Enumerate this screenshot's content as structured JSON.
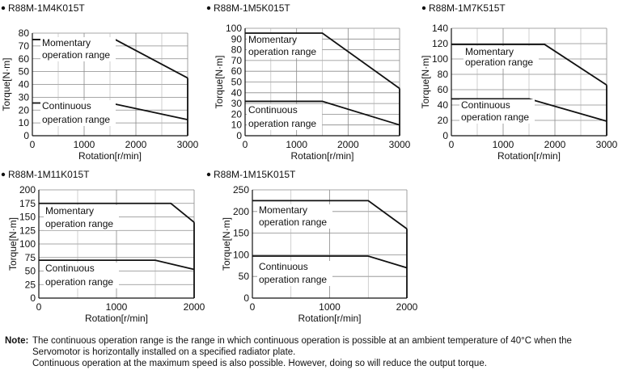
{
  "chart_data": [
    {
      "type": "line",
      "title": "R88M-1M4K015T",
      "xlabel": "Rotation[r/min]",
      "ylabel": "Torque[N·m]",
      "xlim": [
        0,
        3000
      ],
      "ylim": [
        0,
        80
      ],
      "x_ticks": [
        0,
        1000,
        2000,
        3000
      ],
      "y_ticks": [
        0,
        10,
        20,
        30,
        40,
        50,
        60,
        70,
        80
      ],
      "grid": true,
      "series": [
        {
          "name": "Momentary operation range",
          "x": [
            0,
            1600,
            3000
          ],
          "y": [
            75,
            75,
            45
          ]
        },
        {
          "name": "Continuous operation range",
          "x": [
            0,
            1500,
            3000
          ],
          "y": [
            25.5,
            25.5,
            12.5
          ]
        }
      ]
    },
    {
      "type": "line",
      "title": "R88M-1M5K015T",
      "xlabel": "Rotation[r/min]",
      "ylabel": "Torque[N·m]",
      "xlim": [
        0,
        3000
      ],
      "ylim": [
        0,
        100
      ],
      "x_ticks": [
        0,
        1000,
        2000,
        3000
      ],
      "y_ticks": [
        0,
        10,
        20,
        30,
        40,
        50,
        60,
        70,
        80,
        90,
        100
      ],
      "grid": true,
      "series": [
        {
          "name": "Momentary operation range",
          "x": [
            0,
            1500,
            3000
          ],
          "y": [
            95.5,
            95.5,
            44
          ]
        },
        {
          "name": "Continuous operation range",
          "x": [
            0,
            1500,
            3000
          ],
          "y": [
            32,
            32,
            10
          ]
        }
      ]
    },
    {
      "type": "line",
      "title": "R88M-1M7K515T",
      "xlabel": "Rotation[r/min]",
      "ylabel": "Torque[N·m]",
      "xlim": [
        0,
        3000
      ],
      "ylim": [
        0,
        140
      ],
      "x_ticks": [
        0,
        1000,
        2000,
        3000
      ],
      "y_ticks": [
        0,
        20,
        40,
        60,
        80,
        100,
        120,
        140
      ],
      "grid": true,
      "series": [
        {
          "name": "Momentary operation range",
          "x": [
            0,
            1800,
            3000
          ],
          "y": [
            119,
            119,
            66
          ]
        },
        {
          "name": "Continuous operation range",
          "x": [
            0,
            1500,
            3000
          ],
          "y": [
            48,
            48,
            19
          ]
        }
      ]
    },
    {
      "type": "line",
      "title": "R88M-1M11K015T",
      "xlabel": "Rotation[r/min]",
      "ylabel": "Torque[N·m]",
      "xlim": [
        0,
        2000
      ],
      "ylim": [
        0,
        200
      ],
      "x_ticks": [
        0,
        1000,
        2000
      ],
      "y_ticks": [
        0,
        25,
        50,
        75,
        100,
        125,
        150,
        175,
        200
      ],
      "grid": true,
      "series": [
        {
          "name": "Momentary operation range",
          "x": [
            0,
            1700,
            2000
          ],
          "y": [
            175,
            175,
            140
          ]
        },
        {
          "name": "Continuous operation range",
          "x": [
            0,
            1500,
            2000
          ],
          "y": [
            70,
            70,
            53
          ]
        }
      ]
    },
    {
      "type": "line",
      "title": "R88M-1M15K015T",
      "xlabel": "Rotation[r/min]",
      "ylabel": "Torque[N·m]",
      "xlim": [
        0,
        2000
      ],
      "ylim": [
        0,
        250
      ],
      "x_ticks": [
        0,
        1000,
        2000
      ],
      "y_ticks": [
        0,
        50,
        100,
        150,
        200,
        250
      ],
      "grid": true,
      "series": [
        {
          "name": "Momentary operation range",
          "x": [
            0,
            1500,
            2000
          ],
          "y": [
            225,
            225,
            160
          ]
        },
        {
          "name": "Continuous operation range",
          "x": [
            0,
            1500,
            2000
          ],
          "y": [
            97,
            97,
            70
          ]
        }
      ]
    }
  ],
  "labels": {
    "momentary": [
      "Momentary",
      "operation range"
    ],
    "continuous": [
      "Continuous",
      "operation range"
    ]
  },
  "note": {
    "label": "Note:",
    "line1": "The continuous operation range is the range in which continuous operation is possible at an ambient temperature of 40°C when the",
    "line2": "Servomotor is horizontally installed on a specified radiator plate.",
    "line3": "Continuous operation at the maximum speed is also possible. However, doing so will reduce the output torque."
  }
}
